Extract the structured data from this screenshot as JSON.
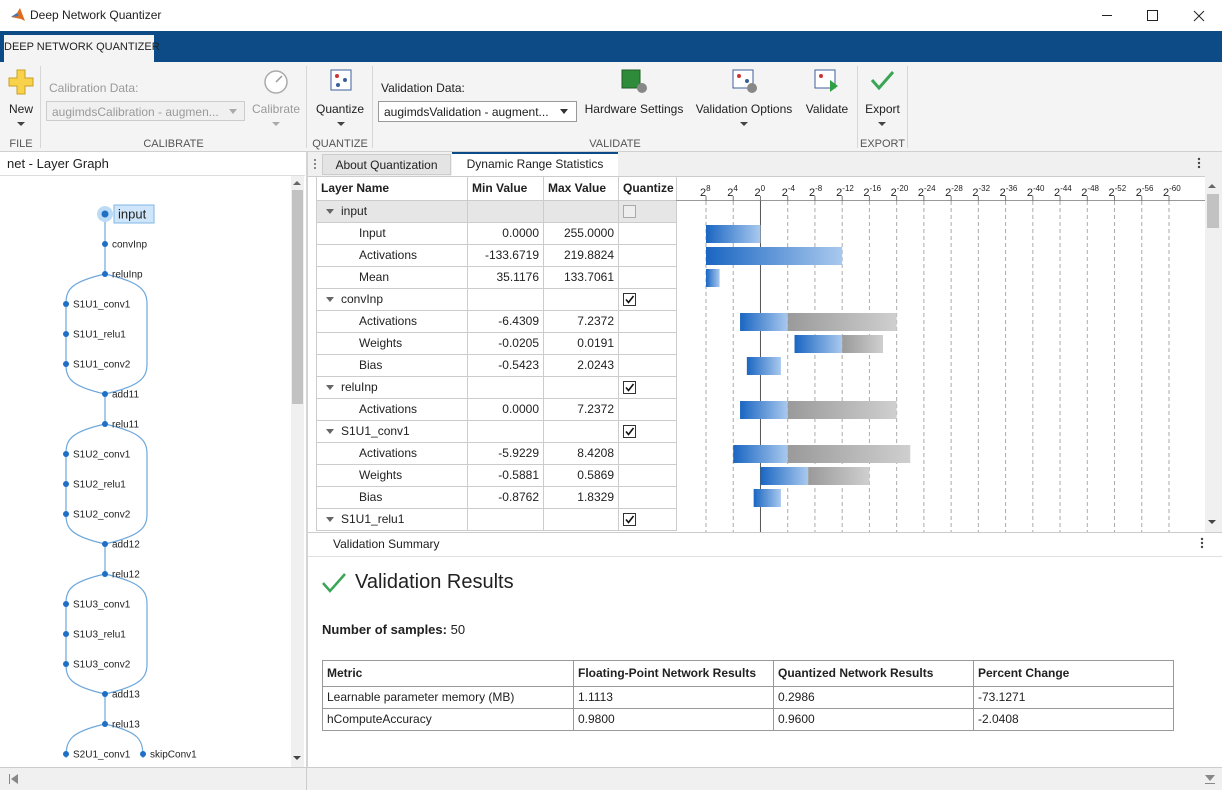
{
  "window": {
    "title": "Deep Network Quantizer"
  },
  "app_tab": "DEEP NETWORK QUANTIZER",
  "toolstrip": {
    "file": {
      "new": "New",
      "section": "FILE"
    },
    "calibrate": {
      "data_label": "Calibration Data:",
      "data_value": "augimdsCalibration - augmen...",
      "calibrate": "Calibrate",
      "section": "CALIBRATE"
    },
    "quantize": {
      "quantize": "Quantize",
      "section": "QUANTIZE"
    },
    "validate": {
      "data_label": "Validation Data:",
      "data_value": "augimdsValidation - augment...",
      "hardware": "Hardware Settings",
      "options": "Validation Options",
      "validate": "Validate",
      "section": "VALIDATE"
    },
    "export": {
      "export": "Export",
      "section": "EXPORT"
    }
  },
  "layer_graph": {
    "title": "net - Layer Graph",
    "nodes": [
      "input",
      "convInp",
      "reluInp",
      "S1U1_conv1",
      "S1U1_relu1",
      "S1U1_conv2",
      "add11",
      "relu11",
      "S1U2_conv1",
      "S1U2_relu1",
      "S1U2_conv2",
      "add12",
      "relu12",
      "S1U3_conv1",
      "S1U3_relu1",
      "S1U3_conv2",
      "add13",
      "relu13",
      "S2U1_conv1",
      "skipConv1"
    ]
  },
  "tabs": [
    "About Quantization",
    "Dynamic Range Statistics"
  ],
  "stats": {
    "columns": [
      "Layer Name",
      "Min Value",
      "Max Value",
      "Quantize"
    ],
    "histogram_base": "2",
    "histogram_exponents": [
      8,
      4,
      0,
      -4,
      -8,
      -12,
      -16,
      -20,
      -24,
      -28,
      -32,
      -36,
      -40,
      -44,
      -48,
      -52,
      -56,
      -60
    ],
    "rows": [
      {
        "name": "input",
        "group": true,
        "quantize": false
      },
      {
        "name": "Input",
        "min": "0.0000",
        "max": "255.0000",
        "hist": {
          "in": [
            8,
            0
          ]
        }
      },
      {
        "name": "Activations",
        "min": "-133.6719",
        "max": "219.8824",
        "hist": {
          "in": [
            8,
            -12
          ]
        }
      },
      {
        "name": "Mean",
        "min": "35.1176",
        "max": "133.7061",
        "hist": {
          "in": [
            8,
            6
          ]
        }
      },
      {
        "name": "convInp",
        "group": true,
        "quantize": true
      },
      {
        "name": "Activations",
        "min": "-6.4309",
        "max": "7.2372",
        "hist": {
          "in": [
            3,
            -4
          ],
          "out": [
            -4,
            -20
          ]
        }
      },
      {
        "name": "Weights",
        "min": "-0.0205",
        "max": "0.0191",
        "hist": {
          "in": [
            -5,
            -12
          ],
          "out": [
            -12,
            -18
          ]
        }
      },
      {
        "name": "Bias",
        "min": "-0.5423",
        "max": "2.0243",
        "hist": {
          "in": [
            2,
            -3
          ]
        }
      },
      {
        "name": "reluInp",
        "group": true,
        "quantize": true
      },
      {
        "name": "Activations",
        "min": "0.0000",
        "max": "7.2372",
        "hist": {
          "in": [
            3,
            -4
          ],
          "out": [
            -4,
            -20
          ]
        }
      },
      {
        "name": "S1U1_conv1",
        "group": true,
        "quantize": true
      },
      {
        "name": "Activations",
        "min": "-5.9229",
        "max": "8.4208",
        "hist": {
          "in": [
            4,
            -4
          ],
          "out": [
            -4,
            -22
          ]
        }
      },
      {
        "name": "Weights",
        "min": "-0.5881",
        "max": "0.5869",
        "hist": {
          "in": [
            0,
            -7
          ],
          "out": [
            -7,
            -16
          ]
        }
      },
      {
        "name": "Bias",
        "min": "-0.8762",
        "max": "1.8329",
        "hist": {
          "in": [
            1,
            -3
          ]
        }
      },
      {
        "name": "S1U1_relu1",
        "group": true,
        "quantize": true
      }
    ]
  },
  "summary": {
    "panel_title": "Validation Summary",
    "heading": "Validation Results",
    "samples_label": "Number of samples:",
    "samples": 50,
    "metrics": {
      "columns": [
        "Metric",
        "Floating-Point Network Results",
        "Quantized Network Results",
        "Percent Change"
      ],
      "rows": [
        [
          "Learnable parameter memory (MB)",
          "1.1113",
          "0.2986",
          "-73.1271"
        ],
        [
          "hComputeAccuracy",
          "0.9800",
          "0.9600",
          "-2.0408"
        ]
      ]
    }
  }
}
